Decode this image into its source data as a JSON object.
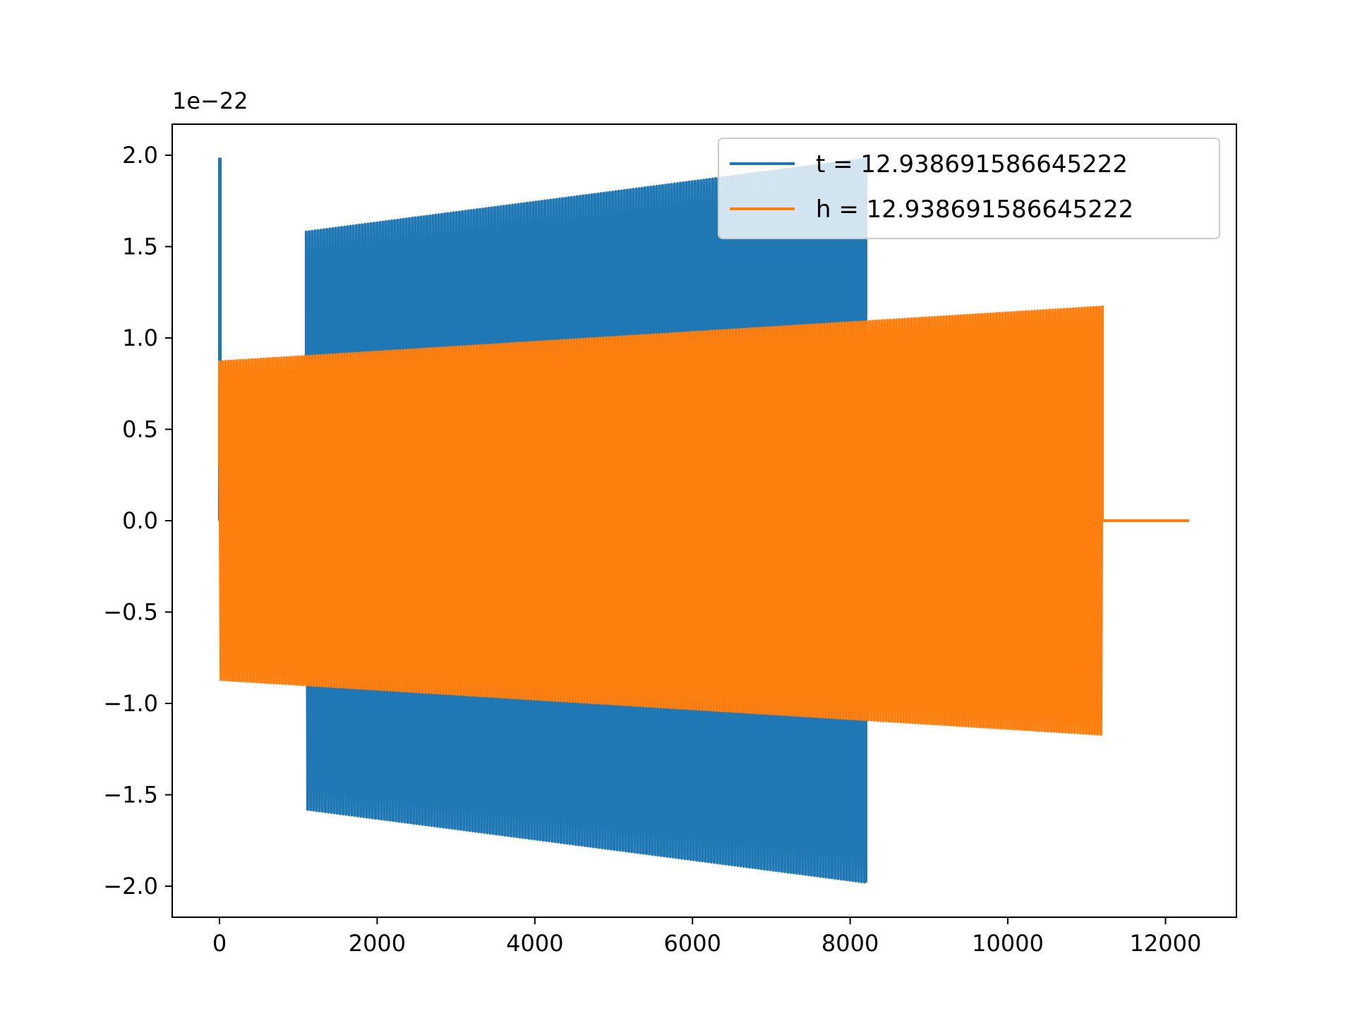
{
  "chart_data": {
    "type": "line",
    "title": "",
    "xlabel": "",
    "ylabel": "",
    "y_offset_label": "1e−22",
    "xlim": [
      -600,
      12900
    ],
    "ylim": [
      -2.17,
      2.17
    ],
    "xticks": [
      0,
      2000,
      4000,
      6000,
      8000,
      10000,
      12000
    ],
    "xtick_labels": [
      "0",
      "2000",
      "4000",
      "6000",
      "8000",
      "10000",
      "12000"
    ],
    "yticks": [
      -2.0,
      -1.5,
      -1.0,
      -0.5,
      0.0,
      0.5,
      1.0,
      1.5,
      2.0
    ],
    "ytick_labels": [
      "−2.0",
      "−1.5",
      "−1.0",
      "−0.5",
      "0.0",
      "0.5",
      "1.0",
      "1.5",
      "2.0"
    ],
    "grid": false,
    "legend_position": "top-right",
    "series": [
      {
        "name": "t = 12.938691586645222",
        "color": "#1f77b4",
        "description_envelope": [
          {
            "x": 0,
            "y": 0.0
          },
          {
            "x": 0,
            "y": 1.98
          },
          {
            "x": 10,
            "y": 0.0
          },
          {
            "x": 1100,
            "y": 1.58
          },
          {
            "x": 8200,
            "y": 1.98
          }
        ],
        "spike_x": [
          0,
          10
        ],
        "spike_amp": 1.98,
        "osc_start_x": 1100,
        "osc_end_x": 8200,
        "osc_amp_start": 1.58,
        "osc_amp_end": 1.98,
        "cycles": 190
      },
      {
        "name": "h = 12.938691586645222",
        "color": "#ff7f0e",
        "osc_start_x": 0,
        "osc_end_x": 11200,
        "osc_amp_start": 0.87,
        "osc_amp_end": 1.17,
        "start_value": 0.3,
        "flat_end_x": 12300,
        "cycles": 300
      }
    ]
  }
}
